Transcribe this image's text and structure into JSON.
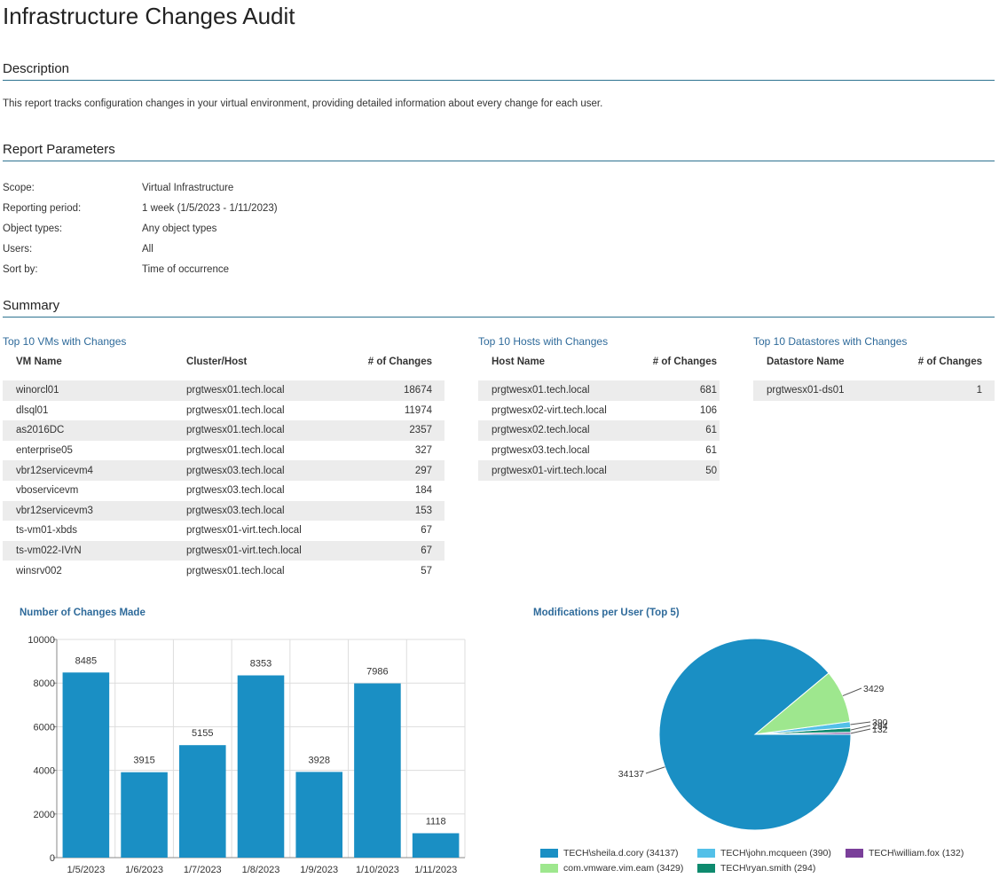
{
  "title": "Infrastructure Changes Audit",
  "description": {
    "heading": "Description",
    "text": "This report tracks configuration changes in your virtual environment, providing detailed information about every change for each user."
  },
  "parameters": {
    "heading": "Report Parameters",
    "rows": [
      {
        "key": "Scope:",
        "value": "Virtual Infrastructure"
      },
      {
        "key": "Reporting period:",
        "value": "1 week (1/5/2023 - 1/11/2023)"
      },
      {
        "key": "Object types:",
        "value": "Any object types"
      },
      {
        "key": "Users:",
        "value": "All"
      },
      {
        "key": "Sort by:",
        "value": "Time of occurrence"
      }
    ]
  },
  "summary": {
    "heading": "Summary",
    "vms": {
      "title": "Top 10 VMs with Changes",
      "headers": [
        "VM Name",
        "Cluster/Host",
        "# of Changes"
      ],
      "rows": [
        [
          "winorcl01",
          "prgtwesx01.tech.local",
          "18674"
        ],
        [
          "dlsql01",
          "prgtwesx01.tech.local",
          "11974"
        ],
        [
          "as2016DC",
          "prgtwesx01.tech.local",
          "2357"
        ],
        [
          "enterprise05",
          "prgtwesx01.tech.local",
          "327"
        ],
        [
          "vbr12servicevm4",
          "prgtwesx03.tech.local",
          "297"
        ],
        [
          "vboservicevm",
          "prgtwesx03.tech.local",
          "184"
        ],
        [
          "vbr12servicevm3",
          "prgtwesx03.tech.local",
          "153"
        ],
        [
          "ts-vm01-xbds",
          "prgtwesx01-virt.tech.local",
          "67"
        ],
        [
          "ts-vm022-IVrN",
          "prgtwesx01-virt.tech.local",
          "67"
        ],
        [
          "winsrv002",
          "prgtwesx01.tech.local",
          "57"
        ]
      ]
    },
    "hosts": {
      "title": "Top 10 Hosts with Changes",
      "headers": [
        "Host Name",
        "# of Changes"
      ],
      "rows": [
        [
          "prgtwesx01.tech.local",
          "681"
        ],
        [
          "prgtwesx02-virt.tech.local",
          "106"
        ],
        [
          "prgtwesx02.tech.local",
          "61"
        ],
        [
          "prgtwesx03.tech.local",
          "61"
        ],
        [
          "prgtwesx01-virt.tech.local",
          "50"
        ]
      ]
    },
    "datastores": {
      "title": "Top 10 Datastores with Changes",
      "headers": [
        "Datastore Name",
        "# of Changes"
      ],
      "rows": [
        [
          "prgtwesx01-ds01",
          "1"
        ]
      ]
    }
  },
  "chart_data": [
    {
      "type": "bar",
      "title": "Number of Changes Made",
      "categories": [
        "1/5/2023",
        "1/6/2023",
        "1/7/2023",
        "1/8/2023",
        "1/9/2023",
        "1/10/2023",
        "1/11/2023"
      ],
      "values": [
        8485,
        3915,
        5155,
        8353,
        3928,
        7986,
        1118
      ],
      "ylim": [
        0,
        10000
      ],
      "yticks": [
        0,
        2000,
        4000,
        6000,
        8000,
        10000
      ],
      "grid": true,
      "color": "#1a8fc4"
    },
    {
      "type": "pie",
      "title": "Modifications per User (Top 5)",
      "slices": [
        {
          "label": "TECH\\sheila.d.cory (34137)",
          "value": 34137,
          "color": "#1a8fc4"
        },
        {
          "label": "com.vmware.vim.eam (3429)",
          "value": 3429,
          "color": "#9ee78e"
        },
        {
          "label": "TECH\\john.mcqueen (390)",
          "value": 390,
          "color": "#53c0e8"
        },
        {
          "label": "TECH\\ryan.smith (294)",
          "value": 294,
          "color": "#0e8a6e"
        },
        {
          "label": "TECH\\william.fox (132)",
          "value": 132,
          "color": "#7a3f9a"
        }
      ],
      "legend": "bottom"
    }
  ]
}
